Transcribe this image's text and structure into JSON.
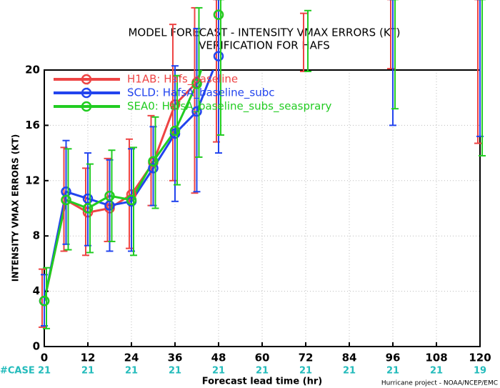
{
  "chart_data": {
    "type": "line",
    "title": "MODEL FORECAST - INTENSITY VMAX ERRORS (KT)",
    "subtitle": "VERIFICATION FOR HAFS",
    "x_label": "Forecast lead time (hr)",
    "y_label": "INTENSITY VMAX ERRORS (KT)",
    "footer": "Hurricane project - NOAA/NCEP/EMC",
    "case_label": "#CASE",
    "case_counts": [
      21,
      21,
      21,
      21,
      21,
      21,
      21,
      21,
      21,
      21,
      19
    ],
    "x": [
      0,
      6,
      12,
      18,
      24,
      30,
      36,
      42,
      48,
      72,
      96,
      120
    ],
    "xlim": [
      0,
      120
    ],
    "xticks": [
      0,
      12,
      24,
      36,
      48,
      60,
      72,
      84,
      96,
      108,
      120
    ],
    "ylim": [
      0,
      20
    ],
    "yticks": [
      0,
      4,
      8,
      12,
      16,
      20
    ],
    "grid": true,
    "legend": "upper left",
    "series": [
      {
        "name": "H1AB: Hafs_baseline",
        "color": "#ee4444",
        "values": [
          3.3,
          10.6,
          9.7,
          10.0,
          11.0,
          13.3,
          17.5,
          19.1,
          24.0,
          null,
          null,
          null
        ],
        "err_low": [
          1.4,
          6.9,
          6.6,
          7.6,
          7.1,
          10.2,
          12.0,
          11.1,
          14.8,
          19.9,
          20.1,
          14.7
        ],
        "err_high": [
          5.6,
          14.4,
          12.9,
          13.6,
          15.0,
          16.7,
          23.3,
          24.5,
          25.1,
          24.1,
          25.1,
          25.1
        ]
      },
      {
        "name": "SCLD: HafsA_baseline_subc",
        "color": "#2244ee",
        "values": [
          3.3,
          11.2,
          10.7,
          10.2,
          10.5,
          12.9,
          15.4,
          17.0,
          21.0,
          null,
          null,
          null
        ],
        "err_low": [
          1.5,
          7.4,
          7.3,
          6.9,
          6.9,
          10.2,
          10.5,
          11.2,
          14.0,
          null,
          16.0,
          15.2
        ],
        "err_high": [
          5.2,
          14.9,
          14.0,
          13.5,
          14.3,
          15.9,
          20.3,
          23.0,
          25.1,
          null,
          25.1,
          25.1
        ]
      },
      {
        "name": "SEA0: HafsA_baseline_subs_seasprary",
        "color": "#22cc22",
        "values": [
          3.3,
          10.6,
          10.0,
          10.9,
          10.6,
          13.4,
          15.6,
          19.0,
          24.0,
          null,
          null,
          null
        ],
        "err_low": [
          1.3,
          7.0,
          6.8,
          7.6,
          6.6,
          10.0,
          11.7,
          13.7,
          15.3,
          19.9,
          17.2,
          13.8
        ],
        "err_high": [
          5.7,
          14.3,
          13.2,
          14.2,
          14.4,
          16.6,
          19.6,
          24.5,
          25.1,
          24.3,
          25.1,
          25.1
        ]
      }
    ]
  }
}
